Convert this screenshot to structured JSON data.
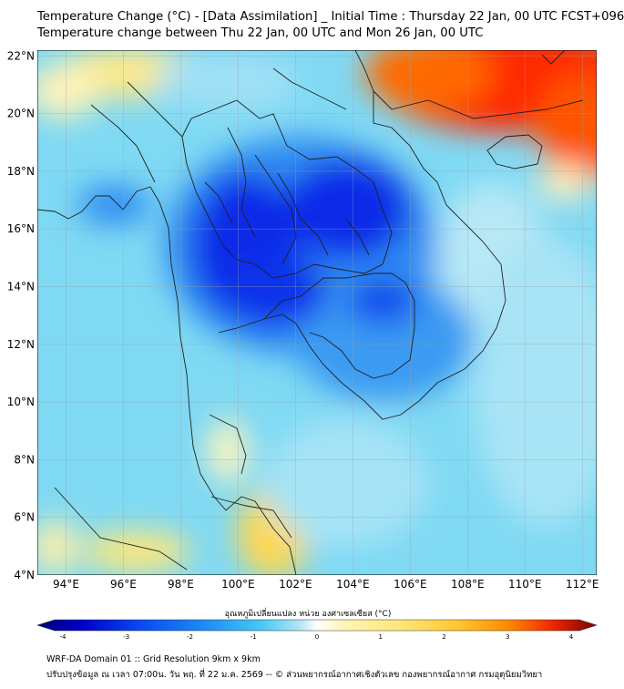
{
  "header": {
    "title": "Temperature Change (°C) - [Data Assimilation] _ Initial Time : Thursday 22 Jan, 00 UTC FCST+096",
    "subtitle": "Temperature change between Thu 22 Jan, 00 UTC and Mon 26 Jan, 00 UTC"
  },
  "map": {
    "lat_labels": [
      "22°N",
      "20°N",
      "18°N",
      "16°N",
      "14°N",
      "12°N",
      "10°N",
      "8°N",
      "6°N",
      "4°N"
    ],
    "lon_labels": [
      "94°E",
      "96°E",
      "98°E",
      "100°E",
      "102°E",
      "104°E",
      "106°E",
      "108°E",
      "110°E",
      "112°E"
    ],
    "lat_range": [
      4,
      22.2
    ],
    "lon_range": [
      93,
      112.5
    ]
  },
  "colorbar": {
    "label": "อุณหภูมิเปลี่ยนแปลง หน่วย องศาเซลเซียส (°C)",
    "ticks": [
      "-4",
      "-3",
      "-2",
      "-1",
      "0",
      "1",
      "2",
      "3",
      "4"
    ],
    "range": [
      -4,
      4
    ],
    "colors": [
      "#00007a",
      "#0000c8",
      "#0a3cf0",
      "#1e78f5",
      "#28b4f5",
      "#5ad2f5",
      "#b4e6f5",
      "#ffffff",
      "#fff5b4",
      "#ffe678",
      "#ffd23c",
      "#ffa000",
      "#ff5a00",
      "#f01e00",
      "#7a0000"
    ]
  },
  "footer": {
    "line1": "WRF-DA Domain 01 :: Grid Resolution 9km x 9km",
    "line2": "ปรับปรุงข้อมูล ณ เวลา 07:00น. วัน พฤ. ที่ 22 ม.ค. 2569 -- © ส่วนพยากรณ์อากาศเชิงตัวเลข กองพยากรณ์อากาศ กรมอุตุนิยมวิทยา"
  }
}
